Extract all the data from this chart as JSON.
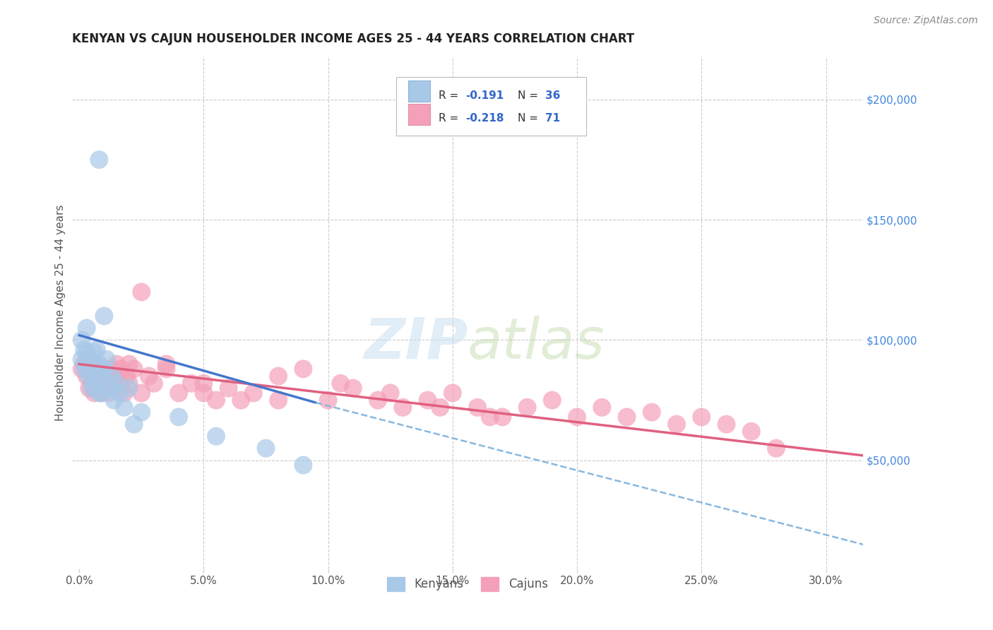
{
  "title": "KENYAN VS CAJUN HOUSEHOLDER INCOME AGES 25 - 44 YEARS CORRELATION CHART",
  "source": "Source: ZipAtlas.com",
  "ylabel": "Householder Income Ages 25 - 44 years",
  "ytick_labels": [
    "$50,000",
    "$100,000",
    "$150,000",
    "$200,000"
  ],
  "ytick_vals": [
    50000,
    100000,
    150000,
    200000
  ],
  "xlim": [
    -0.003,
    0.315
  ],
  "ylim": [
    5000,
    218000
  ],
  "watermark_text": "ZIPatlas",
  "kenyan_color": "#a8c8e8",
  "cajun_color": "#f4a0b8",
  "kenyan_line_color": "#4477cc",
  "cajun_line_color": "#e06080",
  "grid_color": "#cccccc",
  "kenyan_x": [
    0.001,
    0.001,
    0.002,
    0.002,
    0.003,
    0.003,
    0.004,
    0.004,
    0.005,
    0.005,
    0.006,
    0.006,
    0.007,
    0.007,
    0.008,
    0.008,
    0.009,
    0.009,
    0.01,
    0.01,
    0.011,
    0.012,
    0.013,
    0.014,
    0.015,
    0.016,
    0.018,
    0.02,
    0.022,
    0.025,
    0.04,
    0.055,
    0.075,
    0.09,
    0.008,
    0.003
  ],
  "kenyan_y": [
    100000,
    92000,
    96000,
    88000,
    95000,
    90000,
    85000,
    92000,
    87000,
    80000,
    95000,
    82000,
    96000,
    85000,
    78000,
    90000,
    85000,
    78000,
    110000,
    88000,
    92000,
    80000,
    85000,
    75000,
    82000,
    78000,
    72000,
    80000,
    65000,
    70000,
    68000,
    60000,
    55000,
    48000,
    175000,
    105000
  ],
  "cajun_x": [
    0.001,
    0.002,
    0.003,
    0.003,
    0.004,
    0.004,
    0.005,
    0.005,
    0.006,
    0.006,
    0.007,
    0.007,
    0.008,
    0.008,
    0.009,
    0.009,
    0.01,
    0.01,
    0.011,
    0.012,
    0.013,
    0.014,
    0.015,
    0.015,
    0.016,
    0.017,
    0.018,
    0.019,
    0.02,
    0.02,
    0.022,
    0.025,
    0.028,
    0.03,
    0.035,
    0.04,
    0.045,
    0.05,
    0.055,
    0.06,
    0.07,
    0.08,
    0.09,
    0.1,
    0.11,
    0.12,
    0.13,
    0.14,
    0.15,
    0.16,
    0.17,
    0.18,
    0.19,
    0.2,
    0.21,
    0.22,
    0.23,
    0.24,
    0.25,
    0.26,
    0.025,
    0.035,
    0.05,
    0.065,
    0.08,
    0.105,
    0.125,
    0.145,
    0.165,
    0.27,
    0.28
  ],
  "cajun_y": [
    88000,
    90000,
    85000,
    92000,
    80000,
    88000,
    82000,
    90000,
    78000,
    85000,
    90000,
    80000,
    85000,
    88000,
    78000,
    82000,
    88000,
    80000,
    85000,
    78000,
    88000,
    80000,
    90000,
    85000,
    82000,
    88000,
    78000,
    85000,
    82000,
    90000,
    88000,
    120000,
    85000,
    82000,
    88000,
    78000,
    82000,
    78000,
    75000,
    80000,
    78000,
    75000,
    88000,
    75000,
    80000,
    75000,
    72000,
    75000,
    78000,
    72000,
    68000,
    72000,
    75000,
    68000,
    72000,
    68000,
    70000,
    65000,
    68000,
    65000,
    78000,
    90000,
    82000,
    75000,
    85000,
    82000,
    78000,
    72000,
    68000,
    62000,
    55000
  ],
  "kenyan_line": [
    0.0,
    102000,
    0.095,
    74000
  ],
  "kenyan_dash_line": [
    0.095,
    74000,
    0.315,
    15000
  ],
  "cajun_line": [
    0.0,
    90000,
    0.315,
    52000
  ],
  "bottom_labels": [
    "Kenyans",
    "Cajuns"
  ]
}
